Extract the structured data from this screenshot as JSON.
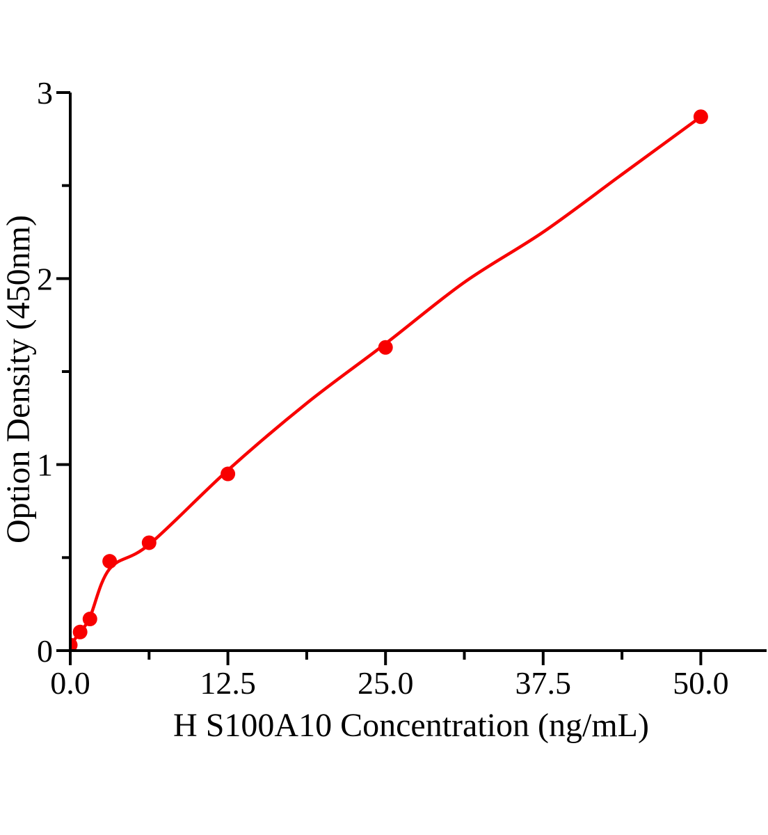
{
  "chart_data": {
    "type": "scatter",
    "title": "",
    "xlabel": "H S100A10 Concentration（ng/mL）",
    "ylabel": "Option Density（450nm）",
    "grid": false,
    "legend": false,
    "accent_color": "#f80000",
    "axis_color": "#000000",
    "x_axis": {
      "ticks": [
        0,
        12.5,
        25,
        37.5,
        50
      ],
      "tick_labels": [
        "0.0",
        "12.5",
        "25.0",
        "37.5",
        "50.0"
      ],
      "minor_ticks": [
        6.25,
        18.75,
        31.25,
        43.75
      ],
      "range": [
        0,
        55.2
      ]
    },
    "y_axis": {
      "ticks": [
        0,
        1,
        2,
        3
      ],
      "tick_labels": [
        "0",
        "1",
        "2",
        "3"
      ],
      "minor_ticks": [
        0.5,
        1.5,
        2.5
      ],
      "range": [
        0,
        3
      ]
    },
    "series": [
      {
        "name": "standard-points",
        "type": "scatter",
        "color": "#f80000",
        "marker_radius": 10.5,
        "x": [
          0,
          0.78,
          1.56,
          3.125,
          6.25,
          12.5,
          25,
          50
        ],
        "y": [
          0.03,
          0.1,
          0.17,
          0.48,
          0.58,
          0.95,
          1.63,
          2.87
        ]
      },
      {
        "name": "fitted-curve",
        "type": "line",
        "color": "#f80000",
        "stroke_width": 4.5,
        "x": [
          0,
          0.78,
          1.56,
          3.125,
          6.25,
          12.5,
          18.75,
          25,
          31.25,
          37.5,
          43.75,
          50
        ],
        "y": [
          0.03,
          0.1,
          0.18,
          0.44,
          0.57,
          0.97,
          1.33,
          1.65,
          1.98,
          2.25,
          2.56,
          2.87
        ]
      }
    ]
  }
}
